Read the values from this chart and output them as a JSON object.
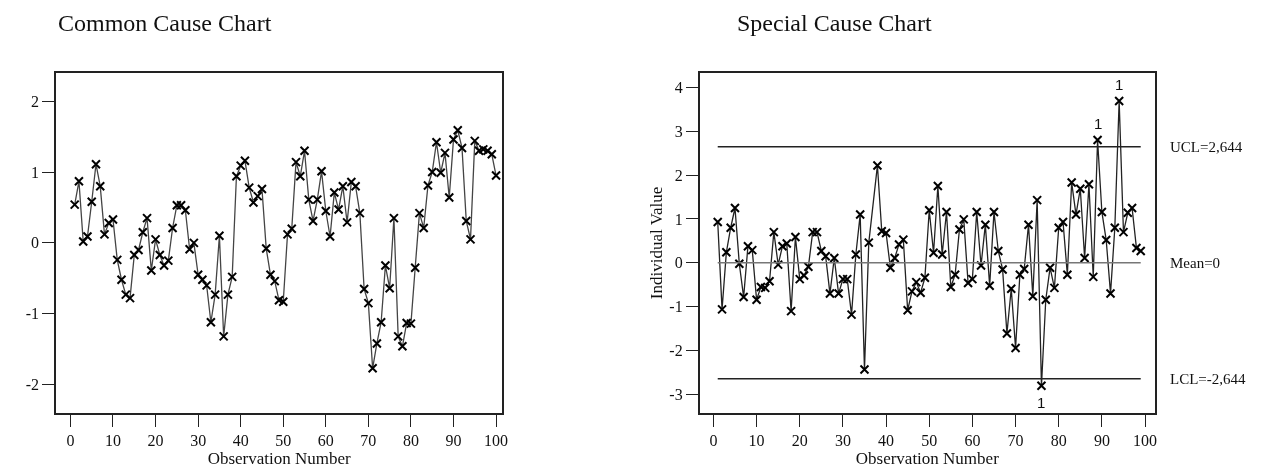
{
  "chart_data": [
    {
      "type": "line",
      "title": "Common Cause Chart",
      "xlabel": "Observation Number",
      "color": "#444444",
      "marker": "cross",
      "xlim": [
        -3.4,
        101.5
      ],
      "ylim": [
        -2.4,
        2.4
      ],
      "xticks": [
        0,
        10,
        20,
        30,
        40,
        50,
        60,
        70,
        80,
        90,
        100
      ],
      "yticks": [
        -2,
        -1,
        0,
        1,
        2
      ],
      "x": [
        1,
        2,
        3,
        4,
        5,
        6,
        7,
        8,
        9,
        10,
        11,
        12,
        13,
        14,
        15,
        16,
        17,
        18,
        19,
        20,
        21,
        22,
        23,
        24,
        25,
        26,
        27,
        28,
        29,
        30,
        31,
        32,
        33,
        34,
        35,
        36,
        37,
        38,
        39,
        40,
        41,
        42,
        43,
        44,
        45,
        46,
        47,
        48,
        49,
        50,
        51,
        52,
        53,
        54,
        55,
        56,
        57,
        58,
        59,
        60,
        61,
        62,
        63,
        64,
        65,
        66,
        67,
        68,
        69,
        70,
        71,
        72,
        73,
        74,
        75,
        76,
        77,
        78,
        79,
        80,
        81,
        82,
        83,
        84,
        85,
        86,
        87,
        88,
        89,
        90,
        91,
        92,
        93,
        94,
        95,
        96,
        97,
        98,
        99,
        100
      ],
      "values": [
        0.54,
        0.87,
        0.02,
        0.09,
        0.58,
        1.11,
        0.8,
        0.12,
        0.28,
        0.33,
        -0.24,
        -0.52,
        -0.73,
        -0.78,
        -0.17,
        -0.1,
        0.15,
        0.35,
        -0.39,
        0.05,
        -0.17,
        -0.32,
        -0.25,
        0.21,
        0.53,
        0.53,
        0.46,
        -0.09,
        0,
        -0.45,
        -0.52,
        -0.6,
        -1.12,
        -0.73,
        0.1,
        -1.32,
        -0.73,
        -0.48,
        0.94,
        1.09,
        1.16,
        0.78,
        0.57,
        0.66,
        0.76,
        -0.08,
        -0.45,
        -0.54,
        -0.81,
        -0.83,
        0.12,
        0.2,
        1.14,
        0.94,
        1.3,
        0.61,
        0.31,
        0.61,
        1.01,
        0.45,
        0.09,
        0.71,
        0.47,
        0.8,
        0.29,
        0.86,
        0.8,
        0.42,
        -0.65,
        -0.85,
        -1.77,
        -1.42,
        -1.12,
        -0.32,
        -0.64,
        0.35,
        -1.32,
        -1.46,
        -1.13,
        -1.14,
        -0.35,
        0.42,
        0.21,
        0.81,
        1.0,
        1.42,
        0.99,
        1.27,
        0.64,
        1.46,
        1.59,
        1.34,
        0.31,
        0.05,
        1.44,
        1.3,
        1.32,
        1.3,
        1.25,
        0.95
      ]
    },
    {
      "type": "line",
      "title": "Special Cause Chart",
      "xlabel": "Observation Number",
      "ylabel": "Individual Value",
      "color": "#222222",
      "marker": "cross",
      "xlim": [
        -3.2,
        102.3
      ],
      "ylim": [
        -3.42,
        4.33
      ],
      "xticks": [
        0,
        10,
        20,
        30,
        40,
        50,
        60,
        70,
        80,
        90,
        100
      ],
      "yticks": [
        -3,
        -2,
        -1,
        0,
        1,
        2,
        3,
        4
      ],
      "x": [
        1,
        2,
        3,
        4,
        5,
        6,
        7,
        8,
        9,
        10,
        11,
        12,
        13,
        14,
        15,
        16,
        17,
        18,
        19,
        20,
        21,
        22,
        23,
        24,
        25,
        26,
        27,
        28,
        29,
        30,
        31,
        32,
        33,
        34,
        35,
        36,
        38,
        39,
        40,
        41,
        42,
        43,
        44,
        45,
        46,
        47,
        48,
        49,
        50,
        51,
        52,
        53,
        54,
        55,
        56,
        57,
        58,
        59,
        60,
        61,
        62,
        63,
        64,
        65,
        66,
        67,
        68,
        69,
        70,
        71,
        72,
        73,
        74,
        75,
        76,
        77,
        78,
        79,
        80,
        81,
        82,
        83,
        84,
        85,
        86,
        87,
        88,
        89,
        90,
        91,
        92,
        93,
        94,
        95,
        96,
        97,
        98,
        99
      ],
      "values": [
        0.93,
        -1.06,
        0.24,
        0.8,
        1.25,
        -0.02,
        -0.78,
        0.38,
        0.29,
        -0.84,
        -0.55,
        -0.57,
        -0.42,
        0.7,
        -0.04,
        0.38,
        0.44,
        -1.1,
        0.59,
        -0.37,
        -0.29,
        -0.09,
        0.7,
        0.7,
        0.27,
        0.15,
        -0.7,
        0.11,
        -0.7,
        -0.37,
        -0.37,
        -1.18,
        0.19,
        1.1,
        -2.43,
        0.46,
        2.22,
        0.72,
        0.68,
        -0.11,
        0.11,
        0.42,
        0.53,
        -1.08,
        -0.65,
        -0.44,
        -0.68,
        -0.34,
        1.2,
        0.23,
        1.75,
        0.19,
        1.16,
        -0.55,
        -0.27,
        0.76,
        0.99,
        -0.46,
        -0.37,
        1.16,
        -0.06,
        0.87,
        -0.52,
        1.16,
        0.27,
        -0.15,
        -1.61,
        -0.59,
        -1.94,
        -0.27,
        -0.14,
        0.87,
        -0.76,
        1.43,
        -2.8,
        -0.84,
        -0.11,
        -0.57,
        0.8,
        0.93,
        -0.27,
        1.83,
        1.1,
        1.69,
        0.11,
        1.79,
        -0.32,
        2.8,
        1.16,
        0.52,
        -0.7,
        0.8,
        3.69,
        0.7,
        1.14,
        1.25,
        0.34,
        0.27
      ],
      "ref_lines": [
        {
          "axis": "y",
          "value": 2.644,
          "label": "UCL=2,644",
          "color": "#222222"
        },
        {
          "axis": "y",
          "value": 0,
          "label": "Mean=0",
          "color": "#777777"
        },
        {
          "axis": "y",
          "value": -2.644,
          "label": "LCL=-2,644",
          "color": "#222222"
        }
      ],
      "annotations": [
        {
          "text": "1",
          "x": 76,
          "y": -2.8
        },
        {
          "text": "1",
          "x": 89,
          "y": 2.8
        },
        {
          "text": "1",
          "x": 94,
          "y": 3.69
        }
      ]
    }
  ]
}
